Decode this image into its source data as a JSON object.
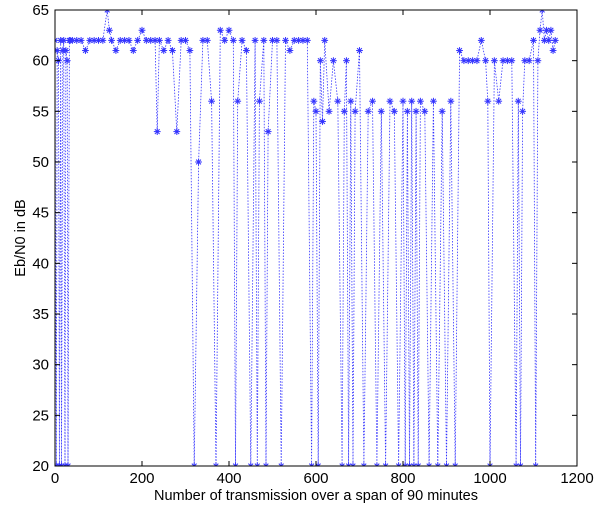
{
  "chart_data": {
    "type": "line",
    "title": "",
    "xlabel": "Number of transmission over a span of 90 minutes",
    "ylabel": "Eb/N0 in dB",
    "xlim": [
      0,
      1200
    ],
    "ylim": [
      20,
      65
    ],
    "xticks": [
      0,
      200,
      400,
      600,
      800,
      1000,
      1200
    ],
    "yticks": [
      20,
      25,
      30,
      35,
      40,
      45,
      50,
      55,
      60,
      65
    ],
    "xtick_labels": [
      "0",
      "200",
      "400",
      "600",
      "800",
      "1000",
      "1200"
    ],
    "ytick_labels": [
      "20",
      "25",
      "30",
      "35",
      "40",
      "45",
      "50",
      "55",
      "60",
      "65"
    ],
    "grid": false,
    "marker": "asterisk",
    "line_style": "dotted",
    "series_color": "#3333ff",
    "series": [
      {
        "x": [
          0,
          3,
          5,
          8,
          10,
          13,
          15,
          18,
          20,
          23,
          25,
          28,
          30,
          33,
          35,
          40,
          50,
          60,
          70,
          80,
          90,
          100,
          110,
          120,
          125,
          130,
          140,
          150,
          160,
          170,
          180,
          190,
          200,
          210,
          220,
          230,
          235,
          240,
          250,
          260,
          270,
          280,
          290,
          300,
          310,
          320,
          330,
          340,
          350,
          360,
          370,
          380,
          390,
          400,
          410,
          415,
          420,
          430,
          440,
          450,
          460,
          465,
          470,
          480,
          485,
          490,
          500,
          510,
          520,
          530,
          540,
          550,
          560,
          570,
          580,
          590,
          595,
          600,
          605,
          610,
          615,
          620,
          630,
          640,
          650,
          660,
          665,
          670,
          675,
          680,
          685,
          690,
          700,
          710,
          720,
          730,
          740,
          750,
          760,
          770,
          780,
          790,
          800,
          805,
          810,
          815,
          820,
          825,
          830,
          835,
          840,
          850,
          860,
          870,
          880,
          890,
          900,
          910,
          920,
          930,
          940,
          950,
          960,
          970,
          980,
          990,
          995,
          1000,
          1010,
          1020,
          1030,
          1040,
          1050,
          1060,
          1065,
          1070,
          1075,
          1080,
          1090,
          1100,
          1105,
          1110,
          1115,
          1120,
          1125,
          1130,
          1135,
          1140,
          1145,
          1150
        ],
        "y": [
          62,
          20,
          61,
          60,
          20,
          62,
          20,
          61,
          62,
          20,
          61,
          60,
          20,
          62,
          62,
          62,
          62,
          62,
          61,
          62,
          62,
          62,
          62,
          65,
          63,
          62,
          61,
          62,
          62,
          62,
          61,
          62,
          63,
          62,
          62,
          62,
          53,
          62,
          61,
          62,
          61,
          53,
          62,
          62,
          61,
          20,
          50,
          62,
          62,
          56,
          20,
          63,
          62,
          63,
          62,
          20,
          56,
          62,
          61,
          20,
          62,
          20,
          56,
          62,
          20,
          53,
          62,
          62,
          20,
          62,
          61,
          62,
          62,
          62,
          62,
          20,
          56,
          55,
          20,
          60,
          54,
          62,
          55,
          60,
          56,
          20,
          55,
          60,
          20,
          56,
          20,
          55,
          61,
          20,
          55,
          56,
          20,
          55,
          20,
          56,
          55,
          20,
          56,
          20,
          55,
          20,
          56,
          20,
          55,
          20,
          56,
          55,
          20,
          56,
          20,
          55,
          20,
          56,
          20,
          61,
          60,
          60,
          60,
          60,
          62,
          60,
          56,
          20,
          60,
          56,
          60,
          60,
          60,
          20,
          56,
          20,
          55,
          60,
          60,
          62,
          20,
          60,
          63,
          65,
          62,
          63,
          62,
          63,
          61,
          62
        ]
      }
    ]
  }
}
